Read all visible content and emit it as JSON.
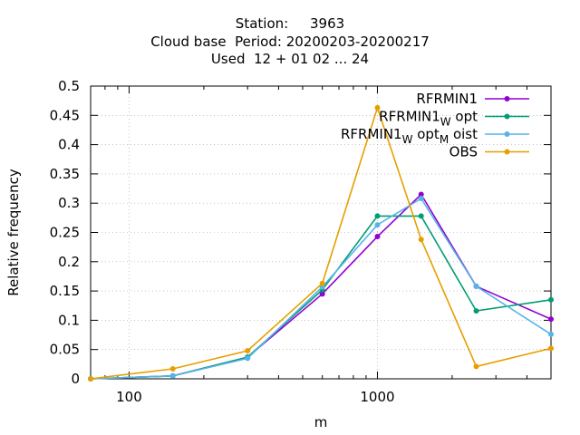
{
  "chart_data": {
    "type": "line",
    "title_lines": [
      "Station:     3963",
      "Cloud base  Period: 20200203-20200217",
      "Used  12 + 01 02 ... 24"
    ],
    "xlabel": "m",
    "ylabel": "Relative frequency",
    "x_scale": "log",
    "xlim": [
      70,
      5000
    ],
    "ylim": [
      0,
      0.5
    ],
    "x_ticks": [
      100,
      1000
    ],
    "x_tick_labels": [
      "100",
      "1000"
    ],
    "y_ticks": [
      0,
      0.05,
      0.1,
      0.15,
      0.2,
      0.25,
      0.3,
      0.35,
      0.4,
      0.45,
      0.5
    ],
    "y_tick_labels": [
      "0",
      "0.05",
      "0.1",
      "0.15",
      "0.2",
      "0.25",
      "0.3",
      "0.35",
      "0.4",
      "0.45",
      "0.5"
    ],
    "grid": true,
    "legend_position": "top-right",
    "x": [
      70,
      150,
      300,
      600,
      1000,
      1500,
      2500,
      5000
    ],
    "series": [
      {
        "name": "RFRMIN1",
        "name_main": "RFRMIN1",
        "name_parts": [],
        "color": "#9400d3",
        "values": [
          0.0,
          0.005,
          0.037,
          0.145,
          0.243,
          0.315,
          0.158,
          0.102
        ]
      },
      {
        "name": "RFRMIN1_W opt",
        "name_main": "RFRMIN1",
        "name_parts": [
          [
            "W",
            "opt"
          ]
        ],
        "color": "#009e73",
        "values": [
          0.0,
          0.005,
          0.037,
          0.152,
          0.278,
          0.278,
          0.116,
          0.135
        ]
      },
      {
        "name": "RFRMIN1_W opt_M oist",
        "name_main": "RFRMIN1",
        "name_parts": [
          [
            "W",
            "opt"
          ],
          [
            "M",
            "oist"
          ]
        ],
        "color": "#56b4e9",
        "values": [
          0.0,
          0.005,
          0.035,
          0.157,
          0.263,
          0.308,
          0.158,
          0.076
        ]
      },
      {
        "name": "OBS",
        "name_main": "OBS",
        "name_parts": [],
        "color": "#e69f00",
        "values": [
          0.0,
          0.017,
          0.048,
          0.163,
          0.463,
          0.238,
          0.021,
          0.052
        ]
      }
    ]
  }
}
